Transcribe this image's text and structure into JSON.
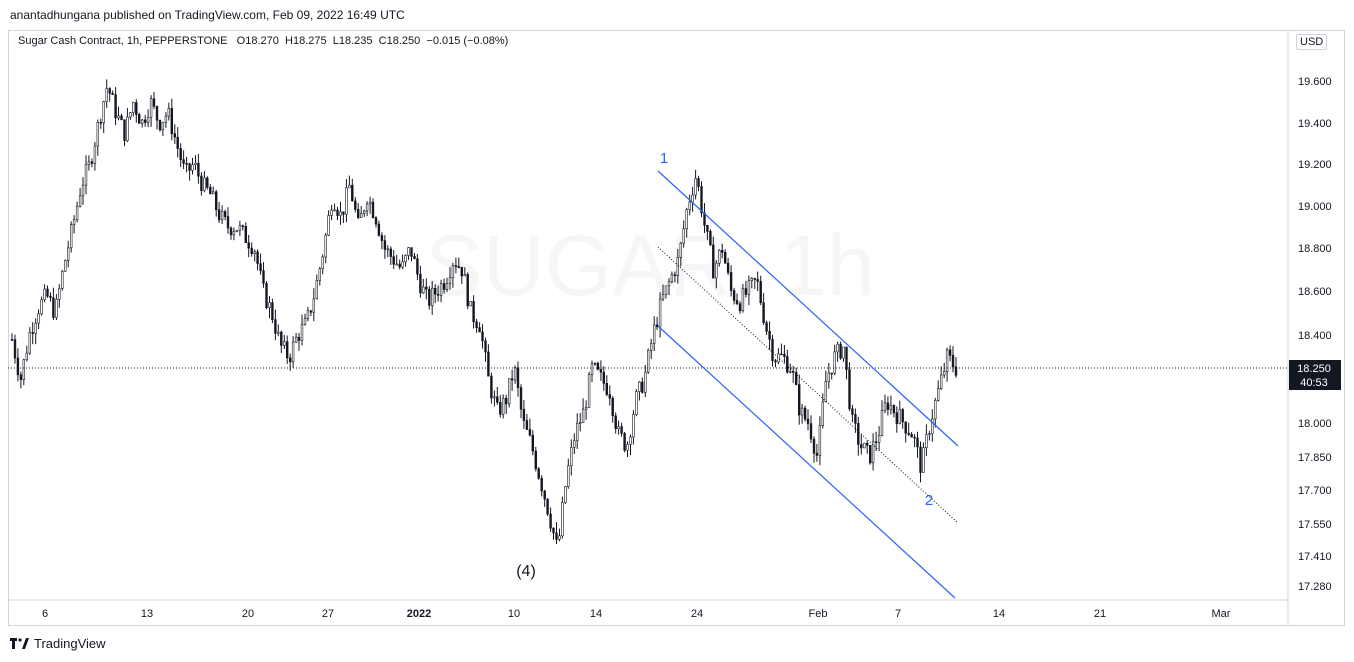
{
  "header": {
    "publisher_line": "anantadhungana published on TradingView.com, Feb 09, 2022 16:49 UTC"
  },
  "legend": {
    "symbol": "Sugar Cash Contract, 1h, PEPPERSTONE",
    "o_label": "O",
    "o": "18.270",
    "h_label": "H",
    "h": "18.275",
    "l_label": "L",
    "l": "18.235",
    "c_label": "C",
    "c": "18.250",
    "change": "−0.015 (−0.08%)"
  },
  "currency": "USD",
  "watermark": "SUGAR, 1h",
  "brand": "TradingView",
  "colors": {
    "candle": "#131722",
    "annotation": "#2962ff",
    "price_tag": "#131722",
    "grid": "#e0e3eb"
  },
  "chart_data": {
    "type": "candlestick",
    "y_axis": {
      "ticks": [
        19.6,
        19.4,
        19.2,
        19.0,
        18.8,
        18.6,
        18.4,
        18.0,
        17.85,
        17.7,
        17.55,
        17.41,
        17.28
      ],
      "labels": [
        "19.600",
        "19.400",
        "19.200",
        "19.000",
        "18.800",
        "18.600",
        "18.400",
        "18.000",
        "17.850",
        "17.700",
        "17.550",
        "17.410",
        "17.280"
      ]
    },
    "x_axis": {
      "labels": [
        "6",
        "13",
        "20",
        "27",
        "2022",
        "10",
        "14",
        "24",
        "Feb",
        "7",
        "14",
        "21",
        "Mar"
      ]
    },
    "last_price": {
      "value": 18.25,
      "label": "18.250",
      "countdown": "40:53"
    },
    "waves": [
      {
        "label": "1",
        "price": 19.15
      },
      {
        "label": "2",
        "price": 17.72
      },
      {
        "label": "(4)",
        "price": 17.43
      }
    ],
    "price_path": [
      18.38,
      18.2,
      18.4,
      18.52,
      18.58,
      18.5,
      18.72,
      18.9,
      19.1,
      19.2,
      19.4,
      19.58,
      19.45,
      19.35,
      19.5,
      19.4,
      19.5,
      19.4,
      19.45,
      19.3,
      19.15,
      19.2,
      19.1,
      19.05,
      18.95,
      18.9,
      18.9,
      18.85,
      18.8,
      18.6,
      18.5,
      18.35,
      18.3,
      18.4,
      18.45,
      18.6,
      18.8,
      19.05,
      18.95,
      19.1,
      18.9,
      19.05,
      18.95,
      18.8,
      18.75,
      18.7,
      18.8,
      18.65,
      18.55,
      18.6,
      18.65,
      18.75,
      18.7,
      18.5,
      18.45,
      18.2,
      18.05,
      18.1,
      18.25,
      18.0,
      17.9,
      17.75,
      17.6,
      17.43,
      17.75,
      17.95,
      18.05,
      18.25,
      18.2,
      18.15,
      17.95,
      17.9,
      18.1,
      18.2,
      18.4,
      18.55,
      18.65,
      18.75,
      19.0,
      19.15,
      18.9,
      18.7,
      18.8,
      18.6,
      18.55,
      18.6,
      18.65,
      18.45,
      18.3,
      18.3,
      18.25,
      18.05,
      18.0,
      17.85,
      18.2,
      18.3,
      18.35,
      18.0,
      17.9,
      17.85,
      17.95,
      18.1,
      18.05,
      18.0,
      17.95,
      17.8,
      18.0,
      18.15,
      18.3,
      18.25
    ]
  }
}
